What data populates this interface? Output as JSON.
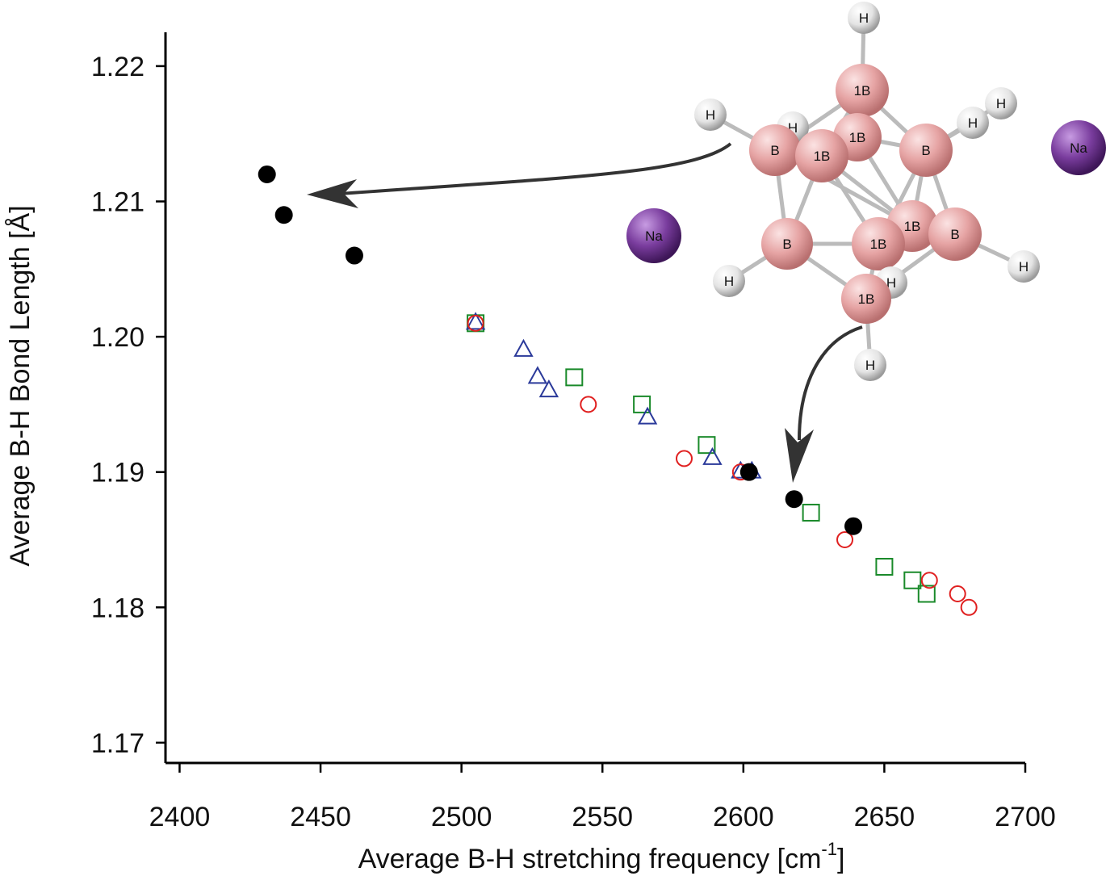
{
  "chart_data": {
    "type": "scatter",
    "xlabel": "Average B-H stretching frequency [cm",
    "xlabel_sup": "-1",
    "xlabel_end": "]",
    "ylabel": "Average B-H Bond Length [Å]",
    "xlim": [
      2395,
      2700
    ],
    "ylim": [
      1.1685,
      1.2225
    ],
    "x_ticks": [
      2400,
      2450,
      2500,
      2550,
      2600,
      2650,
      2700
    ],
    "y_ticks": [
      1.17,
      1.18,
      1.19,
      1.2,
      1.21,
      1.22
    ],
    "x_tick_labels": [
      "2400",
      "2450",
      "2500",
      "2550",
      "2600",
      "2650",
      "2700"
    ],
    "y_tick_labels": [
      "1.17",
      "1.18",
      "1.19",
      "1.20",
      "1.21",
      "1.22"
    ],
    "legend": "none",
    "series": [
      {
        "marker": "filled-circle",
        "color": "#000000",
        "points": [
          {
            "x": 2431,
            "y": 1.212
          },
          {
            "x": 2437,
            "y": 1.209
          },
          {
            "x": 2462,
            "y": 1.206
          },
          {
            "x": 2602,
            "y": 1.19
          },
          {
            "x": 2618,
            "y": 1.188
          },
          {
            "x": 2639,
            "y": 1.186
          }
        ]
      },
      {
        "marker": "open-circle",
        "color": "#e02020",
        "points": [
          {
            "x": 2505,
            "y": 1.201
          },
          {
            "x": 2545,
            "y": 1.195
          },
          {
            "x": 2579,
            "y": 1.191
          },
          {
            "x": 2599,
            "y": 1.19
          },
          {
            "x": 2636,
            "y": 1.185
          },
          {
            "x": 2666,
            "y": 1.182
          },
          {
            "x": 2676,
            "y": 1.181
          },
          {
            "x": 2680,
            "y": 1.18
          }
        ]
      },
      {
        "marker": "open-square",
        "color": "#1a8a2a",
        "points": [
          {
            "x": 2505,
            "y": 1.201
          },
          {
            "x": 2540,
            "y": 1.197
          },
          {
            "x": 2564,
            "y": 1.195
          },
          {
            "x": 2587,
            "y": 1.192
          },
          {
            "x": 2624,
            "y": 1.187
          },
          {
            "x": 2650,
            "y": 1.183
          },
          {
            "x": 2660,
            "y": 1.182
          },
          {
            "x": 2665,
            "y": 1.181
          }
        ]
      },
      {
        "marker": "open-triangle",
        "color": "#2b3a9a",
        "points": [
          {
            "x": 2505,
            "y": 1.201
          },
          {
            "x": 2522,
            "y": 1.199
          },
          {
            "x": 2527,
            "y": 1.197
          },
          {
            "x": 2531,
            "y": 1.196
          },
          {
            "x": 2566,
            "y": 1.194
          },
          {
            "x": 2589,
            "y": 1.191
          },
          {
            "x": 2599,
            "y": 1.19
          },
          {
            "x": 2603,
            "y": 1.19
          }
        ]
      }
    ]
  },
  "molecule": {
    "labels": {
      "h": "H",
      "b": "B",
      "b1": "1B",
      "na": "Na"
    },
    "colors": {
      "boron": "#e8a9a9",
      "hydrogen": "#eeeeee",
      "sodium": "#7a3d9e",
      "bond": "#bbbbbb",
      "arrow": "#333333"
    }
  }
}
